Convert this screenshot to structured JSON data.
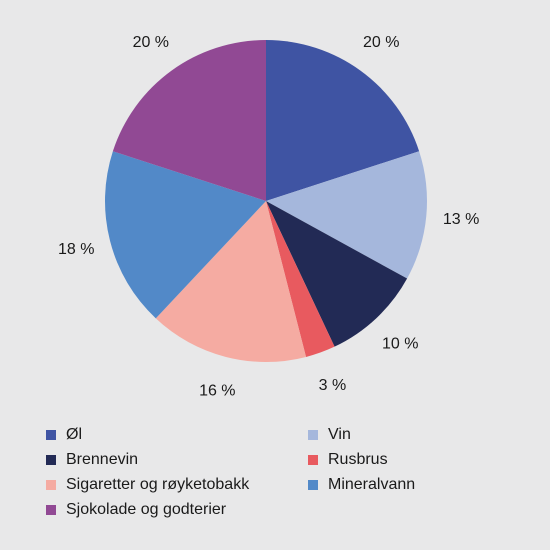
{
  "chart_data": {
    "type": "pie",
    "title": "",
    "start_angle_deg": 0,
    "direction": "clockwise",
    "slices": [
      {
        "label": "Øl",
        "value": 20,
        "value_label": "20 %",
        "color": "#3f54a3"
      },
      {
        "label": "Vin",
        "value": 13,
        "value_label": "13 %",
        "color": "#a5b7dc"
      },
      {
        "label": "Brennevin",
        "value": 10,
        "value_label": "10 %",
        "color": "#222a55"
      },
      {
        "label": "Rusbrus",
        "value": 3,
        "value_label": "3 %",
        "color": "#e85a5f"
      },
      {
        "label": "Sigaretter og røyketobakk",
        "value": 16,
        "value_label": "16 %",
        "color": "#f5aba2"
      },
      {
        "label": "Mineralvann",
        "value": 18,
        "value_label": "18 %",
        "color": "#5289c8"
      },
      {
        "label": "Sjokolade og godterier",
        "value": 20,
        "value_label": "20 %",
        "color": "#914994"
      }
    ],
    "legend": {
      "placement": "bottom",
      "columns": 2,
      "order": [
        "Øl",
        "Vin",
        "Brennevin",
        "Rusbrus",
        "Sigaretter og røyketobakk",
        "Mineralvann",
        "Sjokolade og godterier"
      ]
    }
  }
}
